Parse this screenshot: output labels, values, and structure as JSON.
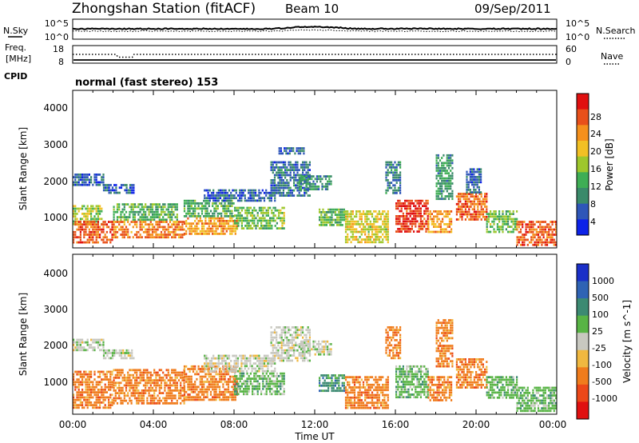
{
  "header": {
    "station": "Zhongshan Station (fitACF)",
    "beam": "Beam 10",
    "date": "09/Sep/2011"
  },
  "panels": {
    "sky": {
      "left_label": "N.Sky",
      "left_ticks": [
        "10^5",
        "10^0"
      ],
      "right_ticks": [
        "10^5",
        "10^0"
      ],
      "right_label": "N.Search"
    },
    "freq": {
      "left_label_1": "Freq.",
      "left_label_2": "[MHz]",
      "left_ticks": [
        "18",
        "8"
      ],
      "right_ticks": [
        "60",
        "0"
      ],
      "right_label": "Nave"
    },
    "cpid": {
      "label": "CPID",
      "mode": "normal (fast stereo) 153"
    }
  },
  "chart_data": [
    {
      "type": "heatmap",
      "name": "power-panel",
      "ylabel": "Slant Range [km]",
      "yticks": [
        "4000",
        "3000",
        "2000",
        "1000"
      ],
      "ylim": [
        150,
        4600
      ],
      "xlim": [
        0,
        24
      ],
      "colorbar": {
        "label": "Power [dB]",
        "ticks": [
          "28",
          "24",
          "20",
          "16",
          "12",
          "8",
          "4"
        ],
        "range": [
          0,
          32
        ],
        "colors": [
          "#0d22e8",
          "#2e56b8",
          "#3a8a6a",
          "#3fae55",
          "#9ec72c",
          "#f2c024",
          "#f5901c",
          "#e8501a",
          "#e01010"
        ]
      },
      "regions": [
        {
          "t0": 0.0,
          "t1": 1.5,
          "r0": 1900,
          "r1": 2250,
          "v": 6
        },
        {
          "t0": 0.0,
          "t1": 1.4,
          "r0": 800,
          "r1": 1350,
          "v": 16
        },
        {
          "t0": 0.0,
          "t1": 2.0,
          "r0": 300,
          "r1": 900,
          "v": 26
        },
        {
          "t0": 1.5,
          "t1": 3.0,
          "r0": 1700,
          "r1": 1950,
          "v": 6
        },
        {
          "t0": 2.0,
          "t1": 5.2,
          "r0": 900,
          "r1": 1400,
          "v": 12
        },
        {
          "t0": 2.0,
          "t1": 5.5,
          "r0": 450,
          "r1": 900,
          "v": 24
        },
        {
          "t0": 5.5,
          "t1": 8.0,
          "r0": 1050,
          "r1": 1500,
          "v": 12
        },
        {
          "t0": 5.5,
          "t1": 8.2,
          "r0": 500,
          "r1": 1000,
          "v": 22
        },
        {
          "t0": 6.5,
          "t1": 10.0,
          "r0": 1500,
          "r1": 1800,
          "v": 6
        },
        {
          "t0": 8.0,
          "t1": 10.5,
          "r0": 700,
          "r1": 1300,
          "v": 14
        },
        {
          "t0": 9.8,
          "t1": 11.8,
          "r0": 1600,
          "r1": 2600,
          "v": 7
        },
        {
          "t0": 10.2,
          "t1": 11.5,
          "r0": 2800,
          "r1": 3000,
          "v": 6
        },
        {
          "t0": 11.2,
          "t1": 12.8,
          "r0": 1800,
          "r1": 2200,
          "v": 10
        },
        {
          "t0": 12.2,
          "t1": 13.5,
          "r0": 800,
          "r1": 1250,
          "v": 13
        },
        {
          "t0": 13.5,
          "t1": 15.6,
          "r0": 300,
          "r1": 1200,
          "v": 18
        },
        {
          "t0": 15.5,
          "t1": 16.2,
          "r0": 1700,
          "r1": 2600,
          "v": 8
        },
        {
          "t0": 16.0,
          "t1": 17.6,
          "r0": 600,
          "r1": 1500,
          "v": 28
        },
        {
          "t0": 17.6,
          "t1": 18.8,
          "r0": 550,
          "r1": 1200,
          "v": 22
        },
        {
          "t0": 18.0,
          "t1": 18.8,
          "r0": 1500,
          "r1": 2800,
          "v": 10
        },
        {
          "t0": 19.0,
          "t1": 20.5,
          "r0": 900,
          "r1": 1700,
          "v": 26
        },
        {
          "t0": 19.5,
          "t1": 20.2,
          "r0": 1700,
          "r1": 2400,
          "v": 6
        },
        {
          "t0": 20.5,
          "t1": 22.0,
          "r0": 600,
          "r1": 1200,
          "v": 14
        },
        {
          "t0": 22.0,
          "t1": 24.0,
          "r0": 200,
          "r1": 900,
          "v": 26
        }
      ]
    },
    {
      "type": "heatmap",
      "name": "velocity-panel",
      "ylabel": "Slant Range [km]",
      "yticks": [
        "4000",
        "3000",
        "2000",
        "1000"
      ],
      "ylim": [
        150,
        4600
      ],
      "xlim": [
        0,
        24
      ],
      "xticks": [
        "00:00",
        "04:00",
        "08:00",
        "12:00",
        "16:00",
        "20:00",
        "00:00"
      ],
      "xlabel": "Time UT",
      "colorbar": {
        "label": "Velocity [m s^-1]",
        "ticks": [
          "1000",
          "500",
          "100",
          "25",
          "-25",
          "-100",
          "-500",
          "-1000"
        ],
        "colors": [
          "#1a2fc8",
          "#2f63b4",
          "#3c8a72",
          "#58b445",
          "#c8c8c0",
          "#f0b840",
          "#f07c1c",
          "#ec4818",
          "#e01010"
        ]
      },
      "regions": [
        {
          "t0": 0.0,
          "t1": 1.5,
          "r0": 1900,
          "r1": 2250,
          "c": 4
        },
        {
          "t0": 0.0,
          "t1": 2.0,
          "r0": 300,
          "r1": 1350,
          "c": 6
        },
        {
          "t0": 1.5,
          "t1": 3.0,
          "r0": 1700,
          "r1": 1950,
          "c": 4
        },
        {
          "t0": 2.0,
          "t1": 5.5,
          "r0": 450,
          "r1": 1400,
          "c": 6
        },
        {
          "t0": 5.5,
          "t1": 8.2,
          "r0": 500,
          "r1": 1500,
          "c": 6
        },
        {
          "t0": 6.5,
          "t1": 10.0,
          "r0": 1350,
          "r1": 1800,
          "c": 4
        },
        {
          "t0": 8.0,
          "t1": 10.5,
          "r0": 700,
          "r1": 1300,
          "c": 3
        },
        {
          "t0": 9.8,
          "t1": 11.8,
          "r0": 1600,
          "r1": 2600,
          "c": 4
        },
        {
          "t0": 11.2,
          "t1": 12.8,
          "r0": 1800,
          "r1": 2200,
          "c": 4
        },
        {
          "t0": 12.2,
          "t1": 13.5,
          "r0": 800,
          "r1": 1250,
          "c": 2
        },
        {
          "t0": 13.5,
          "t1": 15.6,
          "r0": 300,
          "r1": 1200,
          "c": 6
        },
        {
          "t0": 15.5,
          "t1": 16.2,
          "r0": 1700,
          "r1": 2600,
          "c": 6
        },
        {
          "t0": 16.0,
          "t1": 17.6,
          "r0": 600,
          "r1": 1500,
          "c": 3
        },
        {
          "t0": 17.6,
          "t1": 18.8,
          "r0": 550,
          "r1": 1200,
          "c": 6
        },
        {
          "t0": 18.0,
          "t1": 18.8,
          "r0": 1500,
          "r1": 2800,
          "c": 6
        },
        {
          "t0": 19.0,
          "t1": 20.5,
          "r0": 900,
          "r1": 1700,
          "c": 6
        },
        {
          "t0": 20.5,
          "t1": 22.0,
          "r0": 600,
          "r1": 1200,
          "c": 3
        },
        {
          "t0": 22.0,
          "t1": 24.0,
          "r0": 200,
          "r1": 900,
          "c": 3
        }
      ]
    }
  ]
}
